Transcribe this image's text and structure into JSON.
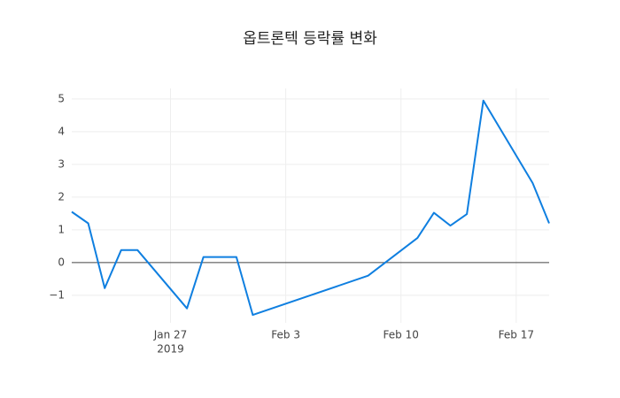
{
  "chart_data": {
    "type": "line",
    "title": "옵트론텍 등락률 변화",
    "x": [
      "2019-01-21",
      "2019-01-22",
      "2019-01-23",
      "2019-01-24",
      "2019-01-25",
      "2019-01-28",
      "2019-01-29",
      "2019-01-30",
      "2019-01-31",
      "2019-02-01",
      "2019-02-08",
      "2019-02-11",
      "2019-02-12",
      "2019-02-13",
      "2019-02-14",
      "2019-02-15",
      "2019-02-18",
      "2019-02-19"
    ],
    "series": [
      {
        "color": "#0f7fe0",
        "values": [
          1.55,
          1.2,
          -0.78,
          0.38,
          0.38,
          -1.4,
          0.17,
          0.17,
          0.17,
          -1.6,
          -0.4,
          0.75,
          1.52,
          1.13,
          1.48,
          4.95,
          2.43,
          1.2
        ]
      }
    ],
    "xlim": [
      "2019-01-21",
      "2019-02-19"
    ],
    "xticks": [
      {
        "value": "2019-01-27",
        "label": "Jan 27"
      },
      {
        "value": "2019-02-03",
        "label": "Feb 3"
      },
      {
        "value": "2019-02-10",
        "label": "Feb 10"
      },
      {
        "value": "2019-02-17",
        "label": "Feb 17"
      }
    ],
    "xtick_year": "2019",
    "ylim": [
      -1.84,
      5.32
    ],
    "yticks": [
      {
        "value": -1,
        "label": "−1"
      },
      0,
      1,
      2,
      3,
      4,
      5
    ],
    "grid": true
  }
}
